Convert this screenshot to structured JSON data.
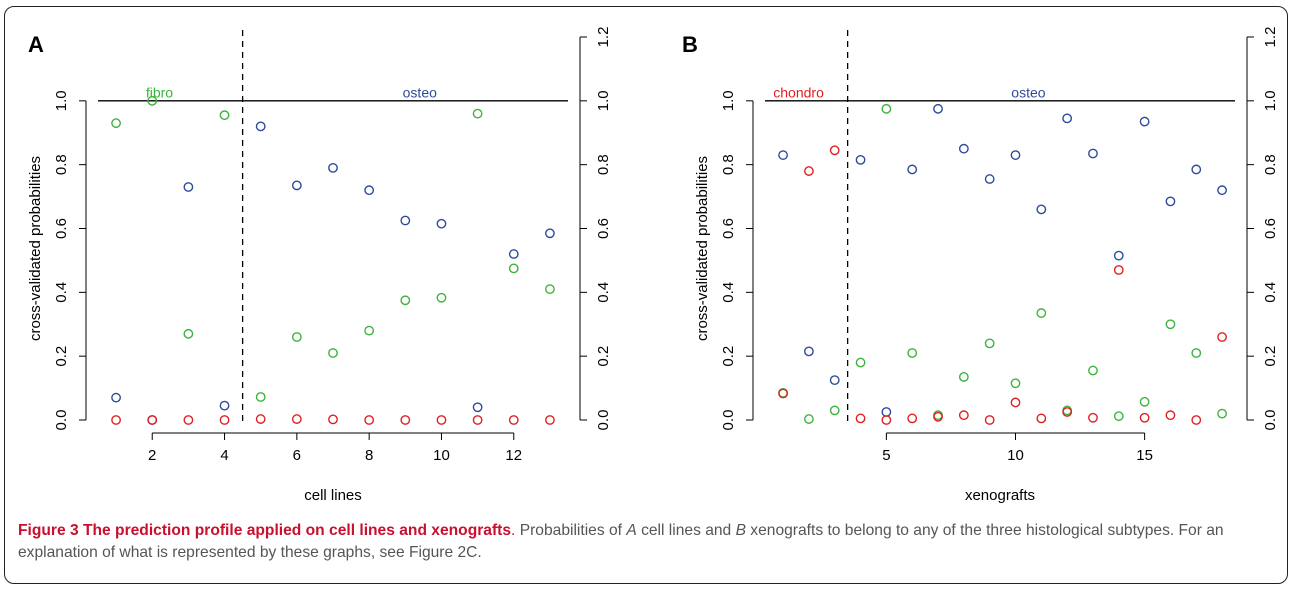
{
  "figure": {
    "caption_title": "Figure 3 The prediction profile applied on cell lines and xenografts",
    "caption_sep": ".",
    "caption_parts": [
      "Probabilities of ",
      "A",
      " cell lines and ",
      "B",
      " xenografts to belong to any of the three histological subtypes. For an explanation of what is represented by these graphs, see Figure 2C."
    ]
  },
  "colors": {
    "blue": "#2e4a9e",
    "green": "#3db33d",
    "red": "#e02020",
    "axis": "#000000"
  },
  "chart_data": [
    {
      "type": "scatter",
      "panel_label": "A",
      "xlabel": "cell lines",
      "ylabel": "cross-validated probabilities",
      "xlim": [
        0.5,
        13.5
      ],
      "ylim": [
        0,
        1.2
      ],
      "x_ticks": [
        2,
        4,
        6,
        8,
        10,
        12
      ],
      "y_ticks_left": [
        0.0,
        0.2,
        0.4,
        0.6,
        0.8,
        1.0
      ],
      "y_ticks_right": [
        0.0,
        0.2,
        0.4,
        0.6,
        0.8,
        1.0,
        1.2
      ],
      "hline": 1.0,
      "vline": 4.5,
      "annotations": [
        {
          "text": "fibro",
          "x": 2.2,
          "y": 1.01,
          "color": "green"
        },
        {
          "text": "osteo",
          "x": 9.4,
          "y": 1.01,
          "color": "blue"
        }
      ],
      "x": [
        1,
        2,
        3,
        4,
        5,
        6,
        7,
        8,
        9,
        10,
        11,
        12,
        13
      ],
      "series": [
        {
          "color": "blue",
          "values": [
            0.07,
            0.0,
            0.73,
            0.045,
            0.92,
            0.735,
            0.79,
            0.72,
            0.625,
            0.615,
            0.04,
            0.52,
            0.585
          ]
        },
        {
          "color": "green",
          "values": [
            0.93,
            1.0,
            0.27,
            0.955,
            0.072,
            0.26,
            0.21,
            0.28,
            0.375,
            0.383,
            0.96,
            0.475,
            0.41
          ]
        },
        {
          "color": "red",
          "values": [
            0.0,
            0.0,
            0.0,
            0.0,
            0.003,
            0.003,
            0.002,
            0.0,
            0.0,
            0.0,
            0.0,
            0.0,
            0.0
          ]
        }
      ]
    },
    {
      "type": "scatter",
      "panel_label": "B",
      "xlabel": "xenografts",
      "ylabel": "cross-validated probabilities",
      "xlim": [
        0.3,
        18.5
      ],
      "ylim": [
        0,
        1.2
      ],
      "x_ticks": [
        5,
        10,
        15
      ],
      "y_ticks_left": [
        0.0,
        0.2,
        0.4,
        0.6,
        0.8,
        1.0
      ],
      "y_ticks_right": [
        0.0,
        0.2,
        0.4,
        0.6,
        0.8,
        1.0,
        1.2
      ],
      "hline": 1.0,
      "vline": 3.5,
      "annotations": [
        {
          "text": "chondro",
          "x": 1.6,
          "y": 1.01,
          "color": "red"
        },
        {
          "text": "osteo",
          "x": 10.5,
          "y": 1.01,
          "color": "blue"
        }
      ],
      "x": [
        1,
        2,
        3,
        4,
        5,
        6,
        7,
        8,
        9,
        10,
        11,
        12,
        13,
        14,
        15,
        16,
        17,
        18
      ],
      "series": [
        {
          "color": "blue",
          "values": [
            0.83,
            0.215,
            0.125,
            0.815,
            0.025,
            0.785,
            0.975,
            0.85,
            0.755,
            0.83,
            0.66,
            0.945,
            0.835,
            0.515,
            0.935,
            0.685,
            0.785,
            0.72
          ]
        },
        {
          "color": "green",
          "values": [
            0.085,
            0.003,
            0.03,
            0.18,
            0.975,
            0.21,
            0.015,
            0.135,
            0.24,
            0.115,
            0.335,
            0.03,
            0.155,
            0.012,
            0.057,
            0.3,
            0.21,
            0.02
          ]
        },
        {
          "color": "red",
          "values": [
            0.083,
            0.78,
            0.845,
            0.005,
            0.0,
            0.005,
            0.01,
            0.015,
            0.0,
            0.055,
            0.005,
            0.025,
            0.007,
            0.47,
            0.007,
            0.015,
            0.0,
            0.26
          ]
        }
      ]
    }
  ]
}
